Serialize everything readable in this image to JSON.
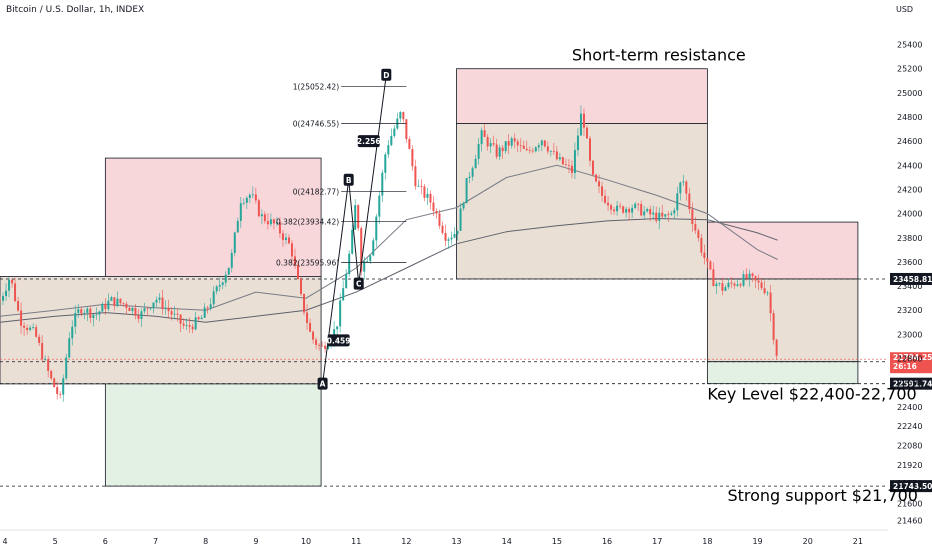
{
  "header": {
    "symbol_title": "Bitcoin / U.S. Dollar, 1h, INDEX",
    "currency": "USD"
  },
  "colors": {
    "up": "#26a69a",
    "down": "#ef5350",
    "resistance_fill": "#f8d7da",
    "support_fill": "#e3f1e5",
    "neutral_fill": "#e9dfd5",
    "price_tag": "#131722",
    "current_tag": "#ef5350"
  },
  "chart_data": {
    "type": "candlestick",
    "title": "Bitcoin / U.S. Dollar, 1h, INDEX",
    "currency": "USD",
    "ylim": [
      21380,
      25620
    ],
    "y_ticks": [
      21460,
      21600,
      21770,
      21920,
      22080,
      22240,
      22400,
      22600,
      22800,
      23000,
      23200,
      23400,
      23600,
      23800,
      24000,
      24200,
      24400,
      24600,
      24800,
      25000,
      25200,
      25400
    ],
    "x_ticks": [
      {
        "day": 4,
        "label": "4"
      },
      {
        "day": 5,
        "label": "5"
      },
      {
        "day": 6,
        "label": "6"
      },
      {
        "day": 7,
        "label": "7"
      },
      {
        "day": 8,
        "label": "8"
      },
      {
        "day": 9,
        "label": "9"
      },
      {
        "day": 10,
        "label": "10"
      },
      {
        "day": 11,
        "label": "11"
      },
      {
        "day": 12,
        "label": "12"
      },
      {
        "day": 13,
        "label": "13"
      },
      {
        "day": 14,
        "label": "14"
      },
      {
        "day": 15,
        "label": "15"
      },
      {
        "day": 16,
        "label": "16"
      },
      {
        "day": 17,
        "label": "17"
      },
      {
        "day": 18,
        "label": "18"
      },
      {
        "day": 19,
        "label": "19"
      },
      {
        "day": 20,
        "label": "20"
      },
      {
        "day": 21,
        "label": "21"
      }
    ],
    "xlim": [
      3.9,
      21.6
    ],
    "price_path": [
      [
        3.9,
        23280
      ],
      [
        4.1,
        23480
      ],
      [
        4.3,
        23120
      ],
      [
        4.6,
        23000
      ],
      [
        4.9,
        22640
      ],
      [
        5.1,
        22460
      ],
      [
        5.3,
        23050
      ],
      [
        5.5,
        23220
      ],
      [
        5.8,
        23160
      ],
      [
        6.1,
        23280
      ],
      [
        6.4,
        23250
      ],
      [
        6.7,
        23160
      ],
      [
        7.0,
        23300
      ],
      [
        7.3,
        23180
      ],
      [
        7.6,
        23050
      ],
      [
        7.9,
        23120
      ],
      [
        8.2,
        23350
      ],
      [
        8.5,
        23600
      ],
      [
        8.7,
        24120
      ],
      [
        8.9,
        24160
      ],
      [
        9.1,
        23980
      ],
      [
        9.4,
        23900
      ],
      [
        9.7,
        23720
      ],
      [
        9.9,
        23300
      ],
      [
        10.1,
        22980
      ],
      [
        10.3,
        22880
      ],
      [
        10.6,
        23050
      ],
      [
        10.9,
        23750
      ],
      [
        11.0,
        24130
      ],
      [
        11.1,
        23560
      ],
      [
        11.3,
        23700
      ],
      [
        11.6,
        24550
      ],
      [
        11.9,
        24840
      ],
      [
        12.2,
        24230
      ],
      [
        12.5,
        24090
      ],
      [
        12.8,
        23800
      ],
      [
        13.0,
        23850
      ],
      [
        13.2,
        24250
      ],
      [
        13.5,
        24650
      ],
      [
        13.8,
        24500
      ],
      [
        14.1,
        24600
      ],
      [
        14.4,
        24500
      ],
      [
        14.7,
        24620
      ],
      [
        15.0,
        24450
      ],
      [
        15.3,
        24350
      ],
      [
        15.5,
        24860
      ],
      [
        15.7,
        24300
      ],
      [
        15.9,
        24150
      ],
      [
        16.2,
        24030
      ],
      [
        16.5,
        24060
      ],
      [
        16.8,
        24000
      ],
      [
        17.1,
        23960
      ],
      [
        17.3,
        24000
      ],
      [
        17.5,
        24300
      ],
      [
        17.7,
        23950
      ],
      [
        17.9,
        23680
      ],
      [
        18.1,
        23450
      ],
      [
        18.3,
        23380
      ],
      [
        18.5,
        23420
      ],
      [
        18.8,
        23470
      ],
      [
        19.0,
        23420
      ],
      [
        19.2,
        23360
      ],
      [
        19.3,
        23050
      ],
      [
        19.4,
        22794
      ]
    ],
    "moving_averages": [
      {
        "name": "",
        "color": "#5d606b",
        "points": [
          [
            3.9,
            23100
          ],
          [
            5,
            23150
          ],
          [
            6,
            23180
          ],
          [
            7,
            23150
          ],
          [
            8,
            23100
          ],
          [
            9,
            23150
          ],
          [
            10,
            23200
          ],
          [
            11,
            23350
          ],
          [
            12,
            23550
          ],
          [
            13,
            23750
          ],
          [
            14,
            23850
          ],
          [
            15,
            23900
          ],
          [
            16,
            23940
          ],
          [
            17,
            23960
          ],
          [
            18,
            23950
          ],
          [
            19,
            23840
          ],
          [
            19.4,
            23780
          ]
        ]
      },
      {
        "name": "",
        "color": "#787b86",
        "points": [
          [
            3.9,
            23150
          ],
          [
            5,
            23200
          ],
          [
            6,
            23250
          ],
          [
            7,
            23220
          ],
          [
            8,
            23200
          ],
          [
            9,
            23350
          ],
          [
            10,
            23300
          ],
          [
            11,
            23550
          ],
          [
            12,
            23950
          ],
          [
            13,
            24050
          ],
          [
            14,
            24300
          ],
          [
            15,
            24400
          ],
          [
            16,
            24280
          ],
          [
            17,
            24150
          ],
          [
            18,
            24000
          ],
          [
            19,
            23700
          ],
          [
            19.4,
            23620
          ]
        ]
      }
    ],
    "boxes": [
      {
        "role": "resistance",
        "x0": 6.0,
        "x1": 10.3,
        "y0": 23480,
        "y1": 24460
      },
      {
        "role": "overlap",
        "x0": 3.9,
        "x1": 10.3,
        "y0": 22590,
        "y1": 23480
      },
      {
        "role": "support",
        "x0": 6.0,
        "x1": 10.3,
        "y0": 21743.5,
        "y1": 22590
      },
      {
        "role": "resistance",
        "x0": 13.0,
        "x1": 18.0,
        "y0": 24746.55,
        "y1": 25200
      },
      {
        "role": "overlap",
        "x0": 13.0,
        "x1": 18.0,
        "y0": 23458.81,
        "y1": 24746.55
      },
      {
        "role": "resistance",
        "x0": 18.0,
        "x1": 21.0,
        "y0": 23458.81,
        "y1": 23930
      },
      {
        "role": "overlap",
        "x0": 18.0,
        "x1": 21.0,
        "y0": 22773.55,
        "y1": 23458.81
      },
      {
        "role": "support",
        "x0": 18.0,
        "x1": 21.0,
        "y0": 22591.74,
        "y1": 22773.55
      }
    ],
    "horizontal_lines": [
      {
        "value": 23458.81,
        "label": "23458.81"
      },
      {
        "value": 22773.55,
        "label": "22773.55"
      },
      {
        "value": 22591.74,
        "label": "22591.74"
      },
      {
        "value": 21743.5,
        "label": "21743.50"
      }
    ],
    "current_price": {
      "value": 22794.25,
      "label": "22794.25",
      "countdown": "26:16"
    },
    "fib_levels": [
      {
        "label": "1(25052.42)",
        "value": 25052.42
      },
      {
        "label": "0(24746.55)",
        "value": 24746.55
      },
      {
        "label": "0(24182.77)",
        "value": 24182.77
      },
      {
        "label": "0.382(23934.42)",
        "value": 23934.42
      },
      {
        "label": "0.382(23595.96)",
        "value": 23595.96
      }
    ],
    "pattern_points": [
      {
        "label": "A",
        "x": 10.33,
        "y": 22591.74
      },
      {
        "label": "B",
        "x": 10.85,
        "y": 24280
      },
      {
        "label": "C",
        "x": 11.05,
        "y": 23420
      },
      {
        "label": "D",
        "x": 11.6,
        "y": 25150
      }
    ],
    "ratio_tags": [
      {
        "label": "0.459",
        "x": 10.65,
        "y": 22950
      },
      {
        "label": "2.256",
        "x": 11.25,
        "y": 24600
      }
    ],
    "annotations": [
      {
        "text": "Short-term resistance",
        "x": 15.3,
        "y": 25270
      },
      {
        "text": "Key Level $22,400-22,700",
        "x": 18.0,
        "y": 22460
      },
      {
        "text": "Strong support $21,700",
        "x": 18.4,
        "y": 21620
      }
    ]
  }
}
